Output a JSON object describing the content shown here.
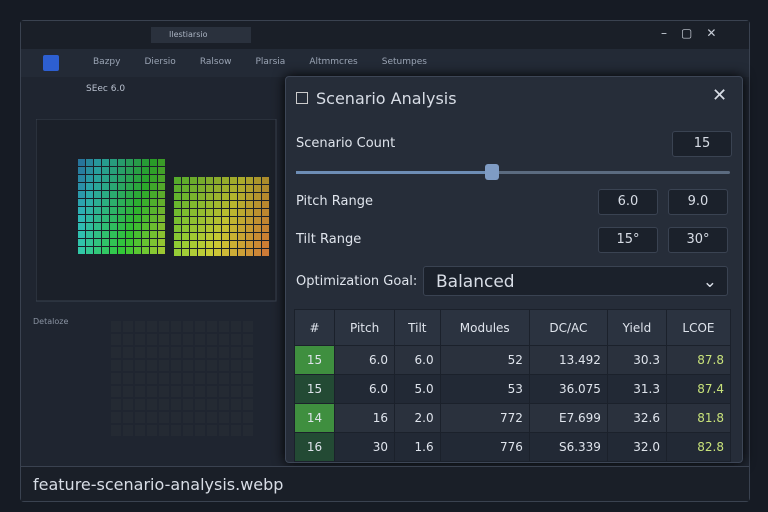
{
  "toolbar": {
    "tab": "Ilestiarsio",
    "menu": [
      "Bazpy",
      "Diersio",
      "Ralsow",
      "Plarsia",
      "Altmmcres",
      "Setumpes"
    ],
    "sub": "SEec 6.0"
  },
  "left": {
    "label": "Detaloze"
  },
  "panel": {
    "title": "Scenario Analysis",
    "fields": [
      {
        "label": "Scenario Count",
        "values": [
          "15"
        ]
      },
      {
        "label": "Pitch Range",
        "values": [
          "6.0",
          "9.0"
        ]
      },
      {
        "label": "Tilt Range",
        "values": [
          "15°",
          "30°"
        ]
      }
    ],
    "goal": {
      "label": "Optimization Goal:",
      "value": "Balanced"
    },
    "table": {
      "headers": [
        "#",
        "Pitch",
        "Tilt",
        "Modules",
        "DC/AC",
        "Yield",
        "LCOE"
      ],
      "rows": [
        [
          "15",
          "6.0",
          "6.0",
          "52",
          "13.492",
          "30.3",
          "87.8"
        ],
        [
          "15",
          "6.0",
          "5.0",
          "53",
          "36.075",
          "31.3",
          "87.4"
        ],
        [
          "14",
          "16",
          "2.0",
          "772",
          "E7.699",
          "32.6",
          "81.8"
        ],
        [
          "16",
          "30",
          "1.6",
          "776",
          "S6.339",
          "32.0",
          "82.8"
        ]
      ]
    }
  },
  "caption": "feature-scenario-analysis.webp"
}
